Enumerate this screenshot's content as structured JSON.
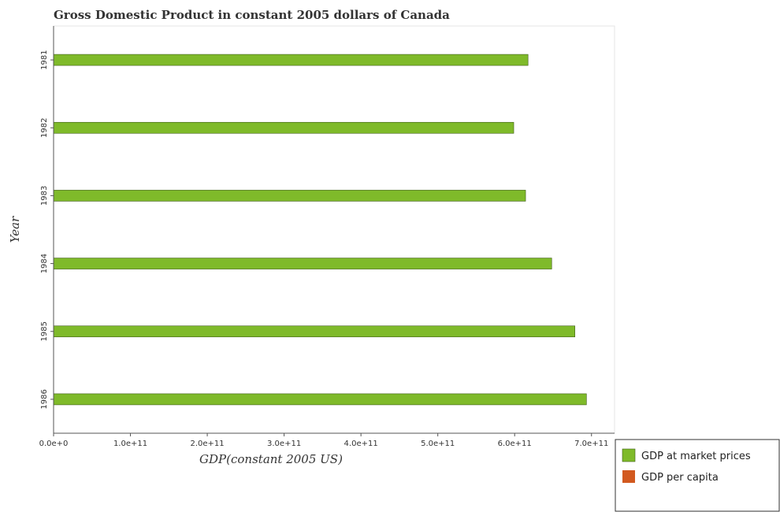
{
  "chart_data": {
    "type": "bar",
    "orientation": "horizontal",
    "title": "Gross Domestic Product in constant 2005 dollars of Canada",
    "xlabel": "GDP(constant 2005 US)",
    "ylabel": "Year",
    "categories": [
      "1981",
      "1982",
      "1983",
      "1984",
      "1985",
      "1986"
    ],
    "series": [
      {
        "name": "GDP at market prices",
        "color": "#7fba2a",
        "values": [
          617400000000,
          598800000000,
          614200000000,
          648200000000,
          678400000000,
          693400000000
        ]
      },
      {
        "name": "GDP per capita",
        "color": "#d2591f",
        "values": [
          25300,
          24300,
          24700,
          25800,
          26700,
          26900
        ]
      }
    ],
    "xlim": [
      0,
      730000000000
    ],
    "xticks": [
      0,
      100000000000,
      200000000000,
      300000000000,
      400000000000,
      500000000000,
      600000000000,
      700000000000
    ],
    "xtick_labels": [
      "0.0e+0",
      "1.0e+11",
      "2.0e+11",
      "3.0e+11",
      "4.0e+11",
      "5.0e+11",
      "6.0e+11",
      "7.0e+11"
    ],
    "grid": false,
    "legend_position": "bottom-right"
  }
}
